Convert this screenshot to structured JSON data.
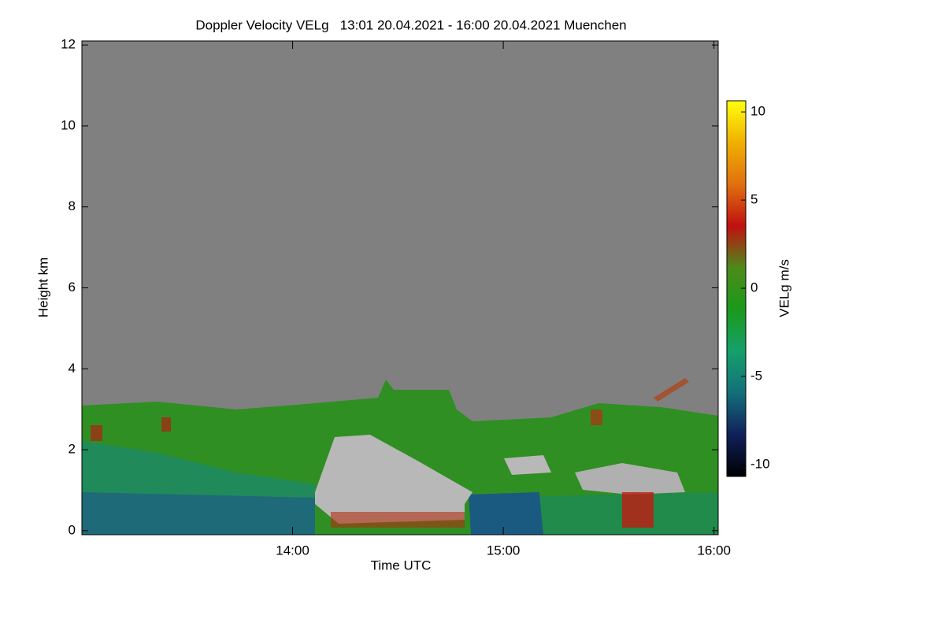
{
  "chart_data": {
    "type": "heatmap",
    "title": "Doppler Velocity VELg   13:01 20.04.2021 - 16:00 20.04.2021 Muenchen",
    "xlabel": "Time UTC",
    "ylabel": "Height km",
    "xlim": [
      13.0,
      16.02
    ],
    "xticks": [
      {
        "value": 14,
        "label": "14:00"
      },
      {
        "value": 15,
        "label": "15:00"
      },
      {
        "value": 16,
        "label": "16:00"
      }
    ],
    "ylim": [
      -0.1,
      12.1
    ],
    "yticks": [
      0,
      2,
      4,
      6,
      8,
      10,
      12
    ],
    "colorbar": {
      "label": "VELg m/s",
      "lim": [
        -10.67,
        10.63
      ],
      "ticks": [
        10,
        5,
        0,
        -5,
        -10
      ],
      "colormap": [
        "#000000",
        "#10205a",
        "#136f7a",
        "#15a06a",
        "#1a9a1a",
        "#4d8a1a",
        "#c01010",
        "#e07010",
        "#f0b000",
        "#ffff10"
      ]
    },
    "background": "#808080"
  }
}
